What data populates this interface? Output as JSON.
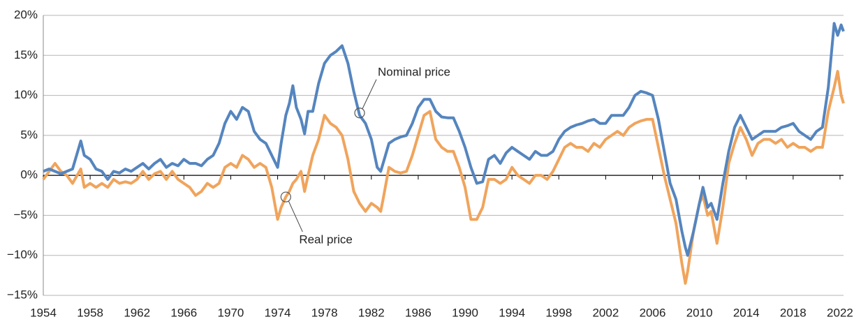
{
  "chart_data": {
    "type": "line",
    "x": [
      1954,
      1954.5,
      1955,
      1955.5,
      1956,
      1956.5,
      1957.2,
      1957.5,
      1958,
      1958.5,
      1959,
      1959.5,
      1960,
      1960.5,
      1961,
      1961.5,
      1962,
      1962.5,
      1963,
      1963.5,
      1964,
      1964.5,
      1965,
      1965.5,
      1966,
      1966.5,
      1967,
      1967.5,
      1968,
      1968.5,
      1969,
      1969.5,
      1970,
      1970.5,
      1971,
      1971.5,
      1972,
      1972.5,
      1973,
      1973.5,
      1974,
      1974.3,
      1974.7,
      1975,
      1975.3,
      1975.6,
      1976,
      1976.3,
      1976.6,
      1977,
      1977.5,
      1978,
      1978.5,
      1979,
      1979.5,
      1980,
      1980.5,
      1981,
      1981.5,
      1982,
      1982.5,
      1982.8,
      1983,
      1983.5,
      1984,
      1984.5,
      1985,
      1985.5,
      1986,
      1986.5,
      1987,
      1987.5,
      1988,
      1988.5,
      1989,
      1989.5,
      1990,
      1990.5,
      1991,
      1991.5,
      1992,
      1992.5,
      1993,
      1993.5,
      1994,
      1994.5,
      1995,
      1995.5,
      1996,
      1996.5,
      1997,
      1997.5,
      1998,
      1998.5,
      1999,
      1999.5,
      2000,
      2000.5,
      2001,
      2001.5,
      2002,
      2002.5,
      2003,
      2003.5,
      2004,
      2004.5,
      2005,
      2005.5,
      2006,
      2006.5,
      2007,
      2007.5,
      2008,
      2008.5,
      2008.8,
      2009,
      2009.5,
      2010,
      2010.3,
      2010.7,
      2011,
      2011.5,
      2012,
      2012.5,
      2013,
      2013.5,
      2014,
      2014.5,
      2015,
      2015.5,
      2016,
      2016.5,
      2017,
      2017.5,
      2018,
      2018.5,
      2019,
      2019.5,
      2020,
      2020.5,
      2021,
      2021.5,
      2021.8,
      2022.1,
      2022.3
    ],
    "series": [
      {
        "name": "Nominal price",
        "color": "#5585bf",
        "values": [
          0.5,
          0.8,
          0.5,
          0.2,
          0.5,
          0.8,
          4.3,
          2.5,
          2.0,
          0.8,
          0.5,
          -0.5,
          0.5,
          0.3,
          0.8,
          0.5,
          1.0,
          1.5,
          0.8,
          1.5,
          2.0,
          1.0,
          1.5,
          1.2,
          2.0,
          1.5,
          1.5,
          1.2,
          2.0,
          2.5,
          4.0,
          6.5,
          8.0,
          7.0,
          8.5,
          8.0,
          5.5,
          4.5,
          4.0,
          2.5,
          1.0,
          4.0,
          7.5,
          9.0,
          11.2,
          8.5,
          7.0,
          5.2,
          8.0,
          8.0,
          11.5,
          14.0,
          15.0,
          15.5,
          16.2,
          14.0,
          10.5,
          7.5,
          6.5,
          4.5,
          1.0,
          0.5,
          1.5,
          4.0,
          4.5,
          4.8,
          5.0,
          6.5,
          8.5,
          9.5,
          9.5,
          8.0,
          7.3,
          7.2,
          7.2,
          5.5,
          3.5,
          1.0,
          -1.0,
          -0.8,
          2.0,
          2.5,
          1.5,
          2.8,
          3.5,
          3.0,
          2.5,
          2.0,
          3.0,
          2.5,
          2.5,
          3.0,
          4.5,
          5.5,
          6.0,
          6.3,
          6.5,
          6.8,
          7.0,
          6.5,
          6.5,
          7.5,
          7.5,
          7.5,
          8.5,
          10.0,
          10.5,
          10.3,
          10.0,
          7.0,
          3.0,
          -1.0,
          -3.0,
          -7.0,
          -9.0,
          -10.0,
          -7.0,
          -3.5,
          -1.5,
          -4.0,
          -3.5,
          -5.5,
          -1.0,
          3.0,
          6.0,
          7.5,
          6.0,
          4.5,
          5.0,
          5.5,
          5.5,
          5.5,
          6.0,
          6.2,
          6.5,
          5.5,
          5.0,
          4.5,
          5.5,
          6.0,
          11.0,
          19.0,
          17.5,
          18.8,
          18.0
        ]
      },
      {
        "name": "Real price",
        "color": "#f0a45c",
        "values": [
          -0.5,
          0.5,
          1.5,
          0.5,
          0.0,
          -1.0,
          0.8,
          -1.5,
          -1.0,
          -1.5,
          -1.0,
          -1.5,
          -0.5,
          -1.0,
          -0.8,
          -1.0,
          -0.5,
          0.5,
          -0.5,
          0.2,
          0.5,
          -0.5,
          0.5,
          -0.5,
          -1.0,
          -1.5,
          -2.5,
          -2.0,
          -1.0,
          -1.5,
          -1.0,
          1.0,
          1.5,
          1.0,
          2.5,
          2.0,
          1.0,
          1.5,
          1.0,
          -1.5,
          -5.5,
          -4.0,
          -2.7,
          -2.0,
          -1.0,
          -0.5,
          0.5,
          -2.0,
          0.0,
          2.5,
          4.5,
          7.5,
          6.5,
          6.0,
          5.0,
          2.0,
          -2.0,
          -3.5,
          -4.5,
          -3.5,
          -4.0,
          -4.5,
          -3.0,
          1.0,
          0.5,
          0.3,
          0.5,
          2.5,
          5.0,
          7.5,
          8.0,
          4.5,
          3.5,
          3.0,
          3.0,
          1.0,
          -1.5,
          -5.5,
          -5.5,
          -4.0,
          -0.5,
          -0.5,
          -1.0,
          -0.5,
          1.0,
          0.0,
          -0.5,
          -1.0,
          0.0,
          0.0,
          -0.5,
          0.5,
          2.0,
          3.5,
          4.0,
          3.5,
          3.5,
          3.0,
          4.0,
          3.5,
          4.5,
          5.0,
          5.5,
          5.0,
          6.0,
          6.5,
          6.8,
          7.0,
          7.0,
          3.5,
          0.0,
          -3.0,
          -6.0,
          -11.0,
          -13.5,
          -12.0,
          -7.0,
          -3.5,
          -2.5,
          -5.0,
          -4.5,
          -8.5,
          -4.0,
          1.5,
          4.0,
          6.0,
          4.5,
          2.5,
          4.0,
          4.5,
          4.5,
          4.0,
          4.5,
          3.5,
          4.0,
          3.5,
          3.5,
          3.0,
          3.5,
          3.5,
          8.0,
          11.0,
          13.0,
          10.0,
          9.0
        ]
      }
    ],
    "annotations": [
      {
        "text": "Nominal price",
        "x": 1981,
        "y": 7.8
      },
      {
        "text": "Real price",
        "x": 1974.7,
        "y": -2.7
      }
    ],
    "xlim": [
      1954,
      2022.3
    ],
    "xticks": [
      1954,
      1958,
      1962,
      1966,
      1970,
      1974,
      1978,
      1982,
      1986,
      1990,
      1994,
      1998,
      2002,
      2006,
      2010,
      2014,
      2018,
      2022
    ],
    "ylim": [
      -15,
      20
    ],
    "yticks": [
      {
        "value": 20,
        "label": "20%"
      },
      {
        "value": 15,
        "label": "15%"
      },
      {
        "value": 10,
        "label": "10%"
      },
      {
        "value": 5,
        "label": "5%"
      },
      {
        "value": 0,
        "label": "0%"
      },
      {
        "value": -5,
        "label": "−5%"
      },
      {
        "value": -10,
        "label": "−10%"
      },
      {
        "value": -15,
        "label": "−15%"
      }
    ],
    "grid": true
  }
}
